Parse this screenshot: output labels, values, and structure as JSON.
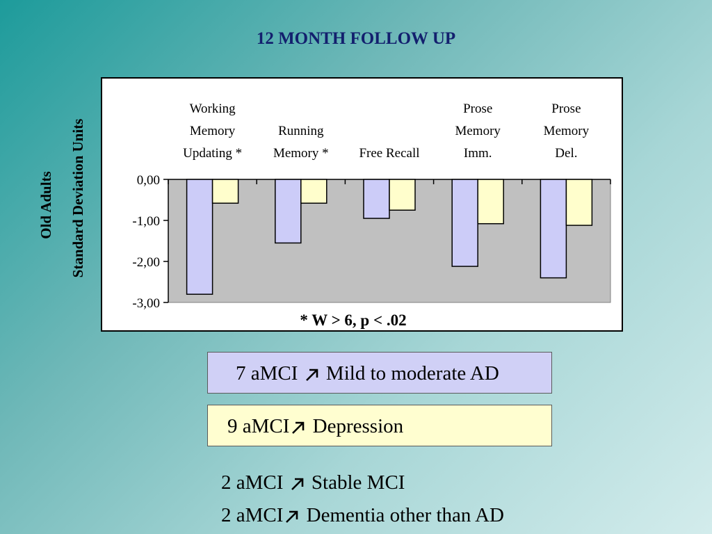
{
  "slide": {
    "title": "12 MONTH FOLLOW UP"
  },
  "chart_data": {
    "type": "bar",
    "ylabel_lines": [
      "Old Adults",
      "Standard Deviation Units"
    ],
    "category_label_lines": [
      [
        "Working",
        "Memory",
        "Updating *"
      ],
      [
        "Running",
        "Memory  *"
      ],
      [
        "Free Recall"
      ],
      [
        "Prose",
        "Memory",
        "Imm."
      ],
      [
        "Prose",
        "Memory",
        "Del."
      ]
    ],
    "series": [
      {
        "values": [
          -2.8,
          -1.55,
          -0.95,
          -2.12,
          -2.4
        ],
        "color": "#ccccf8"
      },
      {
        "values": [
          -0.58,
          -0.58,
          -0.75,
          -1.08,
          -1.12
        ],
        "color": "#fffecc"
      }
    ],
    "yticks": [
      0,
      -1,
      -2,
      -3
    ],
    "ytick_labels": [
      "0,00",
      "-1,00",
      "-2,00",
      "-3,00"
    ],
    "ylim": [
      -3,
      0
    ],
    "footnote": "*  W > 6,  p < .02",
    "plot_background": "#c0c0c0"
  },
  "legend": {
    "blue_text_before": "7 aMCI ",
    "blue_text_after": " Mild to moderate AD",
    "blue_color": "#d0d0f6",
    "yellow_text_before": "9 aMCI",
    "yellow_text_after": " Depression",
    "yellow_color": "#fffed0"
  },
  "outcomes": {
    "line1_before": "2 aMCI ",
    "line1_after": " Stable MCI",
    "line2_before": "2 aMCI",
    "line2_after": " Dementia other than AD"
  },
  "icons": {
    "arrow": "north-east-arrow-icon"
  }
}
